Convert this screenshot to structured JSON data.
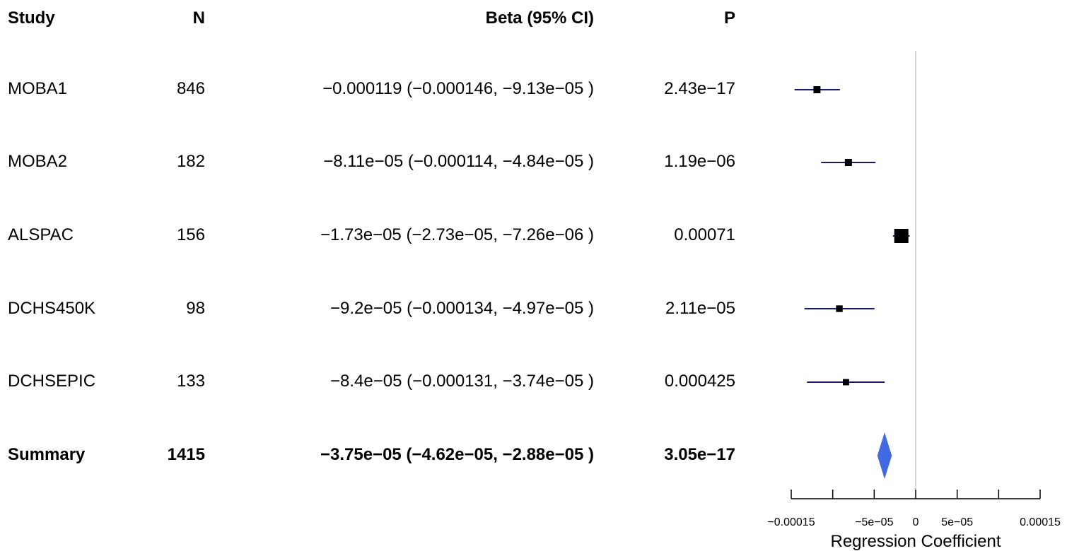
{
  "headers": {
    "study": "Study",
    "n": "N",
    "beta": "Beta (95% CI)",
    "p": "P"
  },
  "rows": [
    {
      "study": "MOBA1",
      "n": "846",
      "beta_text": "−0.000119 (−0.000146, −9.13e−05 )",
      "p": "2.43e−17"
    },
    {
      "study": "MOBA2",
      "n": "182",
      "beta_text": "−8.11e−05 (−0.000114, −4.84e−05 )",
      "p": "1.19e−06"
    },
    {
      "study": "ALSPAC",
      "n": "156",
      "beta_text": "−1.73e−05 (−2.73e−05, −7.26e−06 )",
      "p": "0.00071"
    },
    {
      "study": "DCHS450K",
      "n": "98",
      "beta_text": "−9.2e−05 (−0.000134, −4.97e−05 )",
      "p": "2.11e−05"
    },
    {
      "study": "DCHSEPIC",
      "n": "133",
      "beta_text": "−8.4e−05 (−0.000131, −3.74e−05 )",
      "p": "0.000425"
    }
  ],
  "summary": {
    "study": "Summary",
    "n": "1415",
    "beta_text": "−3.75e−05 (−4.62e−05, −2.88e−05 )",
    "p": "3.05e−17"
  },
  "chart_data": {
    "type": "forest",
    "xlabel": "Regression Coefficient",
    "xlim": [
      -0.00015,
      0.00015
    ],
    "x_ticks": [
      -0.00015,
      -0.0001,
      -5e-05,
      0,
      5e-05,
      0.0001,
      0.00015
    ],
    "x_tick_labels": [
      "−0.00015",
      "",
      "−5e−05",
      "0",
      "5e−05",
      "",
      "0.00015"
    ],
    "reference_line": 0,
    "studies": [
      {
        "name": "MOBA1",
        "n": 846,
        "estimate": -0.000119,
        "lower": -0.000146,
        "upper": -9.13e-05,
        "p": 2.43e-17
      },
      {
        "name": "MOBA2",
        "n": 182,
        "estimate": -8.11e-05,
        "lower": -0.000114,
        "upper": -4.84e-05,
        "p": 1.19e-06
      },
      {
        "name": "ALSPAC",
        "n": 156,
        "estimate": -1.73e-05,
        "lower": -2.73e-05,
        "upper": -7.26e-06,
        "p": 0.00071
      },
      {
        "name": "DCHS450K",
        "n": 98,
        "estimate": -9.2e-05,
        "lower": -0.000134,
        "upper": -4.97e-05,
        "p": 2.11e-05
      },
      {
        "name": "DCHSEPIC",
        "n": 133,
        "estimate": -8.4e-05,
        "lower": -0.000131,
        "upper": -3.74e-05,
        "p": 0.000425
      }
    ],
    "summary": {
      "name": "Summary",
      "n": 1415,
      "estimate": -3.75e-05,
      "lower": -4.62e-05,
      "upper": -2.88e-05,
      "p": 3.05e-17
    },
    "colors": {
      "ci_line": "#191970",
      "point": "#000000",
      "summary_diamond": "#4169e1",
      "reference_line": "#c8c8c8",
      "axis": "#000000"
    }
  }
}
